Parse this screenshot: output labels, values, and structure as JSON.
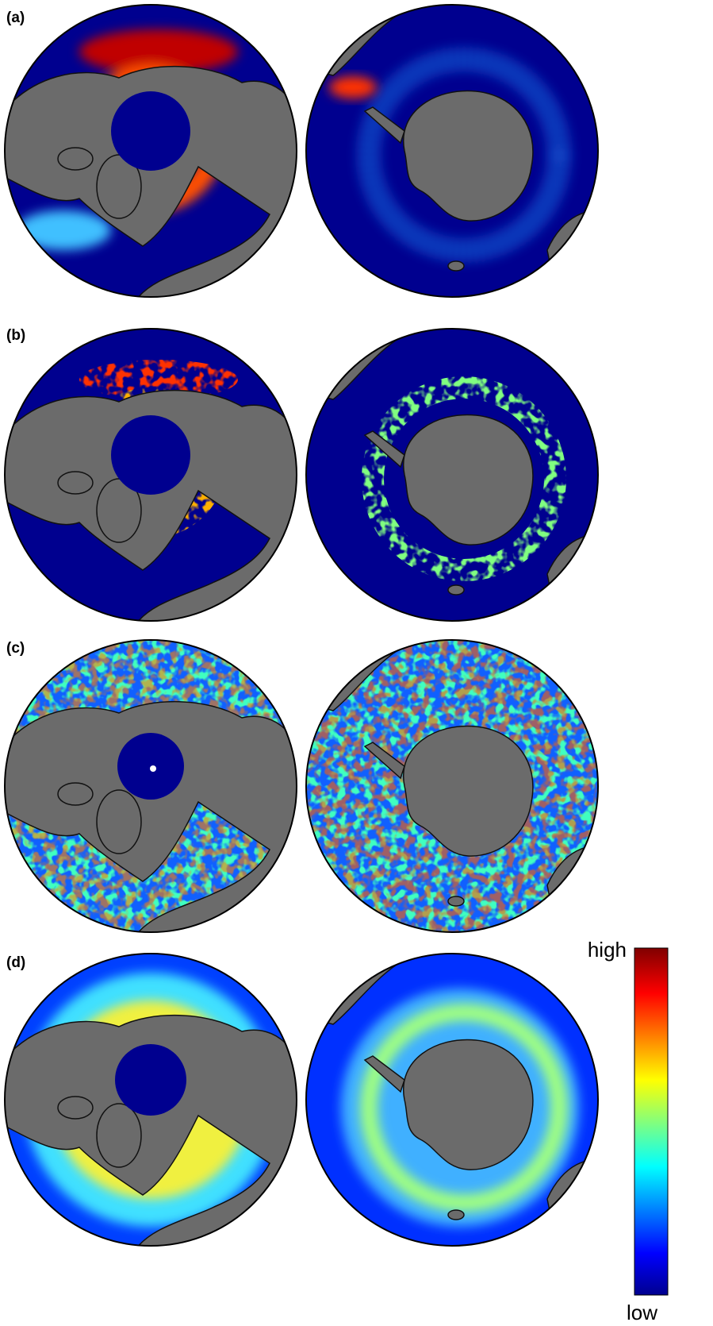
{
  "panels": [
    {
      "label": "(a)"
    },
    {
      "label": "(b)"
    },
    {
      "label": "(c)"
    },
    {
      "label": "(d)"
    }
  ],
  "colorbar": {
    "top_label": "high",
    "bottom_label": "low"
  }
}
